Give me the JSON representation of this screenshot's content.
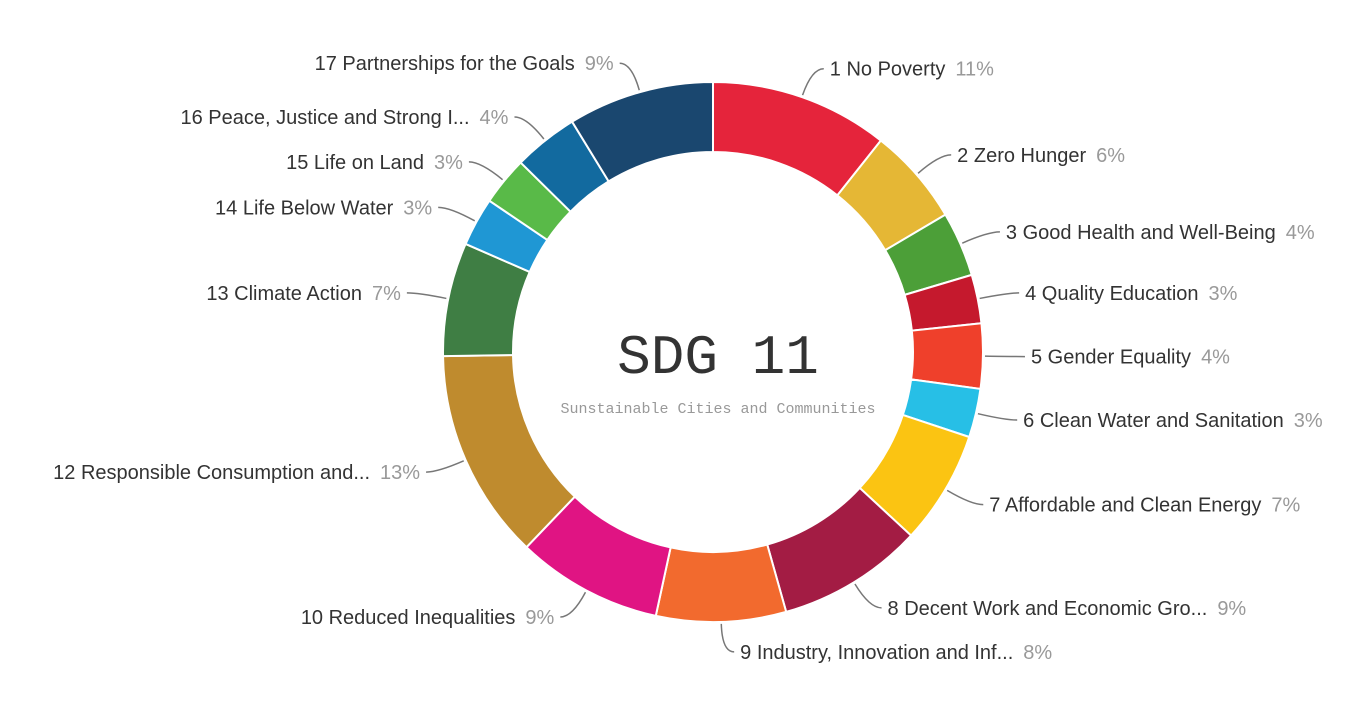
{
  "chart_data": {
    "type": "pie",
    "variant": "donut",
    "center_title": "SDG 11",
    "center_subtitle": "Sunstainable Cities and Communities",
    "legend": "none",
    "slices": [
      {
        "name": "1 No Poverty",
        "percent_label": "11%",
        "value": 11,
        "color": "#E5243B"
      },
      {
        "name": "2 Zero Hunger",
        "percent_label": "6%",
        "value": 6,
        "color": "#E5B735"
      },
      {
        "name": "3 Good Health and Well-Being",
        "percent_label": "4%",
        "value": 4,
        "color": "#4C9F38"
      },
      {
        "name": "4 Quality Education",
        "percent_label": "3%",
        "value": 3,
        "color": "#C5192D"
      },
      {
        "name": "5 Gender Equality",
        "percent_label": "4%",
        "value": 4,
        "color": "#EF402B"
      },
      {
        "name": "6 Clean Water and Sanitation",
        "percent_label": "3%",
        "value": 3,
        "color": "#27BFE6"
      },
      {
        "name": "7 Affordable and Clean Energy",
        "percent_label": "7%",
        "value": 7,
        "color": "#FBC412"
      },
      {
        "name": "8 Decent Work and Economic Gro...",
        "percent_label": "9%",
        "value": 9,
        "color": "#A31C44"
      },
      {
        "name": "9 Industry, Innovation and Inf...",
        "percent_label": "8%",
        "value": 8,
        "color": "#F26A2E"
      },
      {
        "name": "10 Reduced Inequalities",
        "percent_label": "9%",
        "value": 9,
        "color": "#E01483"
      },
      {
        "name": "12 Responsible Consumption and...",
        "percent_label": "13%",
        "value": 13,
        "color": "#BF8B2E"
      },
      {
        "name": "13 Climate Action",
        "percent_label": "7%",
        "value": 7,
        "color": "#3F7E44"
      },
      {
        "name": "14 Life Below Water",
        "percent_label": "3%",
        "value": 3,
        "color": "#1F97D4"
      },
      {
        "name": "15 Life on Land",
        "percent_label": "3%",
        "value": 3,
        "color": "#59BA48"
      },
      {
        "name": "16 Peace, Justice and Strong I...",
        "percent_label": "4%",
        "value": 4,
        "color": "#126A9F"
      },
      {
        "name": "17 Partnerships for the Goals",
        "percent_label": "9%",
        "value": 9,
        "color": "#1A476F"
      }
    ]
  }
}
